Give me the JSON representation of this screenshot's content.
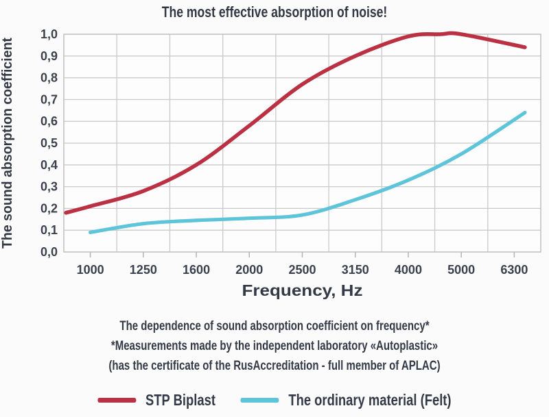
{
  "title": "The most effective absorption of noise!",
  "chart_data": {
    "type": "line",
    "title": "The most effective absorption of noise!",
    "xlabel": "Frequency, Hz",
    "ylabel": "The sound absorption coefficient",
    "x_tick_labels": [
      "1000",
      "1250",
      "1600",
      "2000",
      "2500",
      "3150",
      "4000",
      "5000",
      "6300"
    ],
    "y_tick_labels": [
      "0,0",
      "0,1",
      "0,2",
      "0,3",
      "0,4",
      "0,5",
      "0,6",
      "0,7",
      "0,8",
      "0,9",
      "1,0"
    ],
    "ylim": [
      0.0,
      1.0
    ],
    "ytick_step": 0.1,
    "grid": true,
    "legend_position": "bottom",
    "series": [
      {
        "name": "STP Biplast",
        "color": "#bb3144",
        "x_pos": [
          -0.46,
          0,
          1,
          2,
          3,
          4,
          5,
          6,
          6.6,
          7,
          8.2
        ],
        "values": [
          0.18,
          0.21,
          0.28,
          0.4,
          0.58,
          0.77,
          0.9,
          0.99,
          1.0,
          1.0,
          0.94
        ]
      },
      {
        "name": "The ordinary material (Felt)",
        "color": "#5ec4d9",
        "x_pos": [
          0,
          1,
          2,
          3,
          4,
          5,
          6,
          7,
          8.2
        ],
        "values": [
          0.09,
          0.13,
          0.145,
          0.155,
          0.17,
          0.24,
          0.33,
          0.45,
          0.64
        ]
      }
    ]
  },
  "caption": {
    "line1": "The dependence of sound absorption coefficient on frequency*",
    "line2": "*Measurements made by the independent laboratory «Autoplastic»",
    "line3": "(has the certificate of the RusAccreditation - full member of APLAC)"
  },
  "colors": {
    "text": "#333a45",
    "tick_text": "#3a414c",
    "grid": "#cacaca",
    "border": "#bfbfbf",
    "background": "#fbfbfb"
  }
}
